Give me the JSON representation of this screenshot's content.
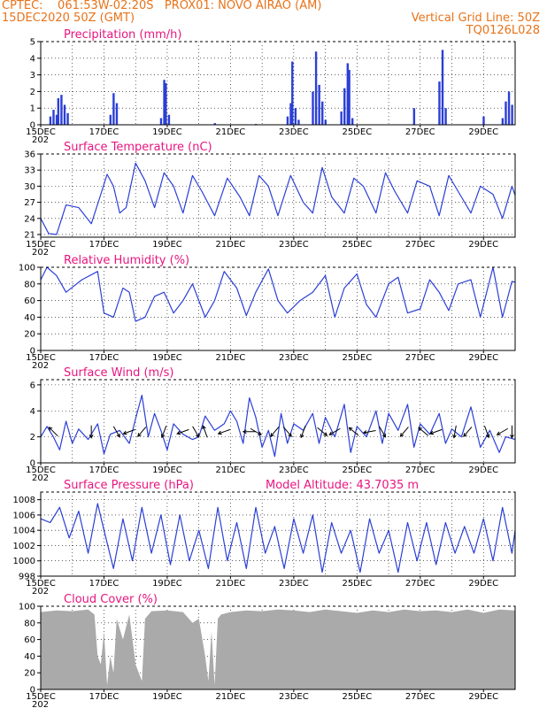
{
  "header": {
    "line1_left": "CPTEC:    061:53W-02:20S   PROX01: NOVO AIRAO (AM)",
    "line2_left": "15DEC2020 50Z (GMT)",
    "line2_right": "Vertical Grid Line: 50Z",
    "line3_right": "TQ0126L028"
  },
  "colors": {
    "header": "#e8731a",
    "title": "#e8157f",
    "series": "#2b3fd6",
    "cloud": "#aaaaaa"
  },
  "x_labels": [
    "15DEC",
    "17DEC",
    "19DEC",
    "21DEC",
    "23DEC",
    "25DEC",
    "27DEC",
    "29DEC"
  ],
  "x_year_label": "202",
  "chart_data": [
    {
      "type": "bar",
      "title": "Precipitation (mm/h)",
      "ylim": [
        0,
        5
      ],
      "yticks": [
        "0",
        "1",
        "2",
        "3",
        "4",
        "5"
      ],
      "x_range_days": [
        0,
        15
      ],
      "grid": "dotted",
      "bars": [
        {
          "x": 0.3,
          "y": 0.5
        },
        {
          "x": 0.4,
          "y": 0.9
        },
        {
          "x": 0.5,
          "y": 0.6
        },
        {
          "x": 0.55,
          "y": 1.6
        },
        {
          "x": 0.65,
          "y": 1.8
        },
        {
          "x": 0.75,
          "y": 1.2
        },
        {
          "x": 0.85,
          "y": 0.7
        },
        {
          "x": 2.2,
          "y": 0.6
        },
        {
          "x": 2.3,
          "y": 1.9
        },
        {
          "x": 2.4,
          "y": 1.3
        },
        {
          "x": 3.8,
          "y": 0.4
        },
        {
          "x": 3.9,
          "y": 2.7
        },
        {
          "x": 3.95,
          "y": 2.5
        },
        {
          "x": 4.05,
          "y": 0.6
        },
        {
          "x": 5.5,
          "y": 0.1
        },
        {
          "x": 6.8,
          "y": 0.05
        },
        {
          "x": 7.8,
          "y": 0.5
        },
        {
          "x": 7.9,
          "y": 1.3
        },
        {
          "x": 7.95,
          "y": 3.8
        },
        {
          "x": 8.05,
          "y": 1.0
        },
        {
          "x": 8.15,
          "y": 0.3
        },
        {
          "x": 8.6,
          "y": 2.0
        },
        {
          "x": 8.7,
          "y": 4.4
        },
        {
          "x": 8.8,
          "y": 2.4
        },
        {
          "x": 8.9,
          "y": 1.4
        },
        {
          "x": 9.0,
          "y": 0.3
        },
        {
          "x": 9.5,
          "y": 0.8
        },
        {
          "x": 9.6,
          "y": 2.2
        },
        {
          "x": 9.7,
          "y": 3.7
        },
        {
          "x": 9.75,
          "y": 3.3
        },
        {
          "x": 9.85,
          "y": 0.4
        },
        {
          "x": 11.8,
          "y": 1.0
        },
        {
          "x": 12.6,
          "y": 2.6
        },
        {
          "x": 12.7,
          "y": 4.5
        },
        {
          "x": 12.8,
          "y": 1.0
        },
        {
          "x": 14.0,
          "y": 0.5
        },
        {
          "x": 14.6,
          "y": 0.4
        },
        {
          "x": 14.7,
          "y": 1.4
        },
        {
          "x": 14.8,
          "y": 2.0
        },
        {
          "x": 14.9,
          "y": 1.2
        }
      ]
    },
    {
      "type": "line",
      "title": "Surface Temperature (nC)",
      "ylim": [
        20.5,
        36
      ],
      "yticks": [
        "21",
        "24",
        "27",
        "30",
        "33",
        "36"
      ],
      "grid": "dotted",
      "x": [
        0,
        0.25,
        0.5,
        0.8,
        1.2,
        1.6,
        1.9,
        2.1,
        2.3,
        2.5,
        2.7,
        3.0,
        3.3,
        3.6,
        3.9,
        4.2,
        4.5,
        4.8,
        5.1,
        5.5,
        5.9,
        6.3,
        6.6,
        6.9,
        7.2,
        7.5,
        7.9,
        8.3,
        8.6,
        8.9,
        9.2,
        9.6,
        9.9,
        10.2,
        10.6,
        10.9,
        11.2,
        11.6,
        11.9,
        12.3,
        12.6,
        12.9,
        13.3,
        13.6,
        13.9,
        14.3,
        14.6,
        14.9,
        15.0
      ],
      "y": [
        24,
        21.2,
        21,
        26.5,
        26,
        23,
        28.5,
        32.2,
        30,
        25,
        26,
        34.3,
        31,
        26,
        32.5,
        30,
        25,
        32,
        29,
        24.5,
        31.5,
        28,
        24.5,
        32,
        30,
        24.5,
        32,
        27,
        25,
        33.5,
        28,
        25,
        31.5,
        30,
        25,
        32.5,
        29,
        25,
        31,
        30,
        24.5,
        32,
        28,
        25,
        30,
        28.5,
        24,
        30,
        28.3
      ]
    },
    {
      "type": "line",
      "title": "Relative Humidity (%)",
      "ylim": [
        0,
        100
      ],
      "yticks": [
        "0",
        "20",
        "40",
        "60",
        "80",
        "100"
      ],
      "grid": "dotted",
      "x": [
        0,
        0.2,
        0.5,
        0.8,
        1.3,
        1.8,
        2.0,
        2.3,
        2.6,
        2.8,
        3.0,
        3.3,
        3.6,
        3.9,
        4.2,
        4.5,
        4.8,
        5.2,
        5.5,
        5.8,
        6.2,
        6.5,
        6.8,
        7.2,
        7.5,
        7.8,
        8.2,
        8.6,
        9.0,
        9.3,
        9.6,
        10.0,
        10.3,
        10.6,
        11.0,
        11.3,
        11.6,
        12.0,
        12.3,
        12.6,
        12.9,
        13.2,
        13.6,
        13.9,
        14.3,
        14.6,
        14.9,
        15.0
      ],
      "y": [
        85,
        100,
        90,
        70,
        85,
        95,
        45,
        40,
        75,
        70,
        35,
        40,
        65,
        70,
        45,
        60,
        80,
        40,
        60,
        95,
        75,
        42,
        70,
        98,
        60,
        45,
        60,
        70,
        90,
        40,
        75,
        92,
        55,
        40,
        80,
        88,
        45,
        50,
        85,
        70,
        48,
        80,
        85,
        40,
        100,
        40,
        83,
        82
      ]
    },
    {
      "type": "line",
      "title": "Surface Wind (m/s)",
      "ylim": [
        0,
        6.4
      ],
      "yticks": [
        "0",
        "2",
        "4",
        "6"
      ],
      "grid": "dotted",
      "x": [
        0,
        0.2,
        0.4,
        0.6,
        0.8,
        1.0,
        1.2,
        1.5,
        1.8,
        2.0,
        2.2,
        2.5,
        2.8,
        3.0,
        3.2,
        3.4,
        3.6,
        3.8,
        4.0,
        4.2,
        4.5,
        4.8,
        5.0,
        5.2,
        5.5,
        5.8,
        6.0,
        6.2,
        6.4,
        6.6,
        6.8,
        7.0,
        7.2,
        7.4,
        7.6,
        7.8,
        8.0,
        8.3,
        8.6,
        8.8,
        9.0,
        9.3,
        9.6,
        9.8,
        10.0,
        10.3,
        10.6,
        10.8,
        11.0,
        11.3,
        11.6,
        11.8,
        12.0,
        12.3,
        12.6,
        12.8,
        13.0,
        13.3,
        13.6,
        13.9,
        14.2,
        14.5,
        14.7,
        15.0
      ],
      "y": [
        2.0,
        2.8,
        2.0,
        1.0,
        3.2,
        1.5,
        2.6,
        1.8,
        3.0,
        0.7,
        2.2,
        2.5,
        1.5,
        3.4,
        5.2,
        2.0,
        3.8,
        2.5,
        1.0,
        3.0,
        2.2,
        1.8,
        2.0,
        3.6,
        2.5,
        3.0,
        4.0,
        3.2,
        1.5,
        5.0,
        3.5,
        1.2,
        2.5,
        0.5,
        3.8,
        1.5,
        3.0,
        2.5,
        3.8,
        1.5,
        3.5,
        2.0,
        4.5,
        0.8,
        2.8,
        2.0,
        4.0,
        1.5,
        3.8,
        2.5,
        4.5,
        1.2,
        3.0,
        2.2,
        3.8,
        1.5,
        2.6,
        2.0,
        4.3,
        1.2,
        2.5,
        0.8,
        2.0,
        1.8
      ]
    },
    {
      "type": "line",
      "title": "Surface Pressure (hPa)",
      "annotation": "Model Altitude: 43.7035 m",
      "ylim": [
        998,
        1009
      ],
      "yticks": [
        "998",
        "1000",
        "1002",
        "1004",
        "1006",
        "1008"
      ],
      "grid": "dotted",
      "x": [
        0,
        0.3,
        0.6,
        0.9,
        1.2,
        1.5,
        1.8,
        2.0,
        2.3,
        2.6,
        2.9,
        3.2,
        3.5,
        3.8,
        4.1,
        4.4,
        4.7,
        5.0,
        5.3,
        5.6,
        5.9,
        6.2,
        6.5,
        6.8,
        7.1,
        7.4,
        7.7,
        8.0,
        8.3,
        8.6,
        8.9,
        9.2,
        9.5,
        9.8,
        10.1,
        10.4,
        10.7,
        11.0,
        11.3,
        11.6,
        11.9,
        12.2,
        12.5,
        12.8,
        13.1,
        13.4,
        13.7,
        14.0,
        14.3,
        14.6,
        14.9,
        15.0
      ],
      "y": [
        1005.5,
        1005,
        1007,
        1003,
        1006.5,
        1001,
        1007.5,
        1004,
        999,
        1005.5,
        1000,
        1007,
        1001,
        1006,
        999.5,
        1006,
        1000,
        1004,
        999,
        1007,
        1000,
        1005,
        999,
        1007,
        1001,
        1004.5,
        999,
        1005.5,
        1001,
        1006,
        998.5,
        1005,
        1001,
        1004,
        998.5,
        1005.5,
        1001,
        1004,
        998.5,
        1005,
        1000,
        1005,
        999.5,
        1005,
        1001,
        1004.5,
        1001,
        1005.5,
        1000,
        1007,
        1001,
        1004
      ]
    },
    {
      "type": "area",
      "title": "Cloud Cover (%)",
      "ylim": [
        0,
        100
      ],
      "yticks": [
        "0",
        "20",
        "40",
        "60",
        "80",
        "100"
      ],
      "grid": "dotted",
      "x": [
        0,
        0.5,
        1.0,
        1.5,
        1.7,
        1.8,
        1.9,
        2.0,
        2.1,
        2.2,
        2.3,
        2.4,
        2.6,
        2.8,
        3.0,
        3.2,
        3.3,
        3.5,
        4.0,
        4.5,
        4.8,
        5.0,
        5.2,
        5.3,
        5.4,
        5.5,
        5.6,
        5.7,
        6.0,
        6.5,
        7.0,
        7.5,
        8.0,
        8.5,
        9.0,
        9.5,
        10.0,
        10.5,
        11.0,
        11.5,
        12.0,
        12.5,
        13.0,
        13.5,
        14.0,
        14.5,
        15.0
      ],
      "y": [
        93,
        95,
        94,
        96,
        90,
        40,
        30,
        70,
        5,
        40,
        20,
        85,
        60,
        90,
        30,
        10,
        85,
        94,
        95,
        93,
        80,
        85,
        40,
        10,
        70,
        5,
        85,
        90,
        93,
        95,
        94,
        96,
        95,
        93,
        96,
        94,
        92,
        95,
        93,
        96,
        94,
        95,
        93,
        96,
        92,
        96,
        95
      ]
    }
  ]
}
